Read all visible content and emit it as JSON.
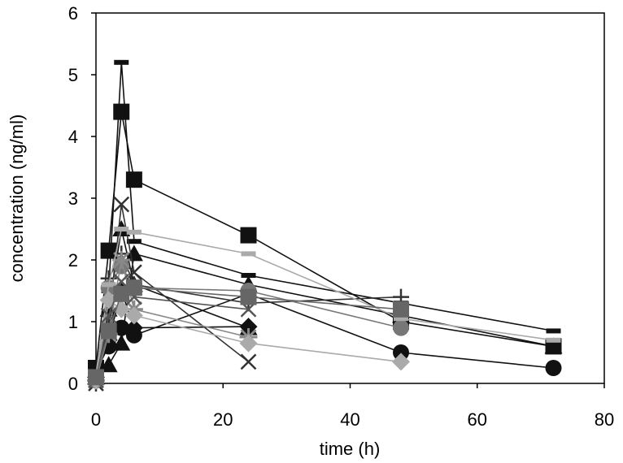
{
  "chart_data": {
    "type": "line",
    "title": "",
    "xlabel": "time (h)",
    "ylabel": "concentration (ng/ml)",
    "xlim": [
      0,
      80
    ],
    "ylim": [
      0,
      6
    ],
    "xticks": [
      0,
      20,
      40,
      60,
      80
    ],
    "yticks": [
      0,
      1,
      2,
      3,
      4,
      5,
      6
    ],
    "grid": false,
    "legend": "none",
    "series": [
      {
        "marker": "square",
        "color": "#111111",
        "x": [
          0,
          2,
          4,
          6,
          24,
          48,
          72
        ],
        "y": [
          0.25,
          2.15,
          4.4,
          3.3,
          2.4,
          1.0,
          0.6
        ]
      },
      {
        "marker": "dash",
        "color": "#111111",
        "x": [
          0,
          2,
          4,
          6,
          24,
          48,
          72
        ],
        "y": [
          0.2,
          1.5,
          5.2,
          2.3,
          1.75,
          1.3,
          0.85
        ]
      },
      {
        "marker": "triangle",
        "color": "#111111",
        "x": [
          0,
          2,
          4,
          6,
          24,
          48,
          72
        ],
        "y": [
          0.15,
          0.3,
          0.65,
          2.1,
          1.6,
          1.1,
          0.6
        ]
      },
      {
        "marker": "triangle",
        "color": "#111111",
        "x": [
          0,
          2,
          4,
          6,
          24
        ],
        "y": [
          0.1,
          1.2,
          2.5,
          1.6,
          0.9
        ]
      },
      {
        "marker": "circle",
        "color": "#111111",
        "x": [
          0,
          2,
          4,
          6,
          24,
          48,
          72
        ],
        "y": [
          0.2,
          0.6,
          0.9,
          0.78,
          1.45,
          0.5,
          0.25
        ]
      },
      {
        "marker": "diamond",
        "color": "#111111",
        "x": [
          0,
          2,
          4,
          6,
          24
        ],
        "y": [
          0.1,
          0.7,
          1.5,
          0.9,
          0.92
        ]
      },
      {
        "marker": "x",
        "color": "#333333",
        "x": [
          0,
          2,
          4,
          6,
          24
        ],
        "y": [
          0.0,
          1.0,
          2.9,
          1.8,
          0.35
        ]
      },
      {
        "marker": "plus",
        "color": "#333333",
        "x": [
          0,
          2,
          4,
          6,
          24,
          48
        ],
        "y": [
          0.0,
          1.7,
          2.1,
          1.6,
          1.3,
          1.4
        ]
      },
      {
        "marker": "circle",
        "color": "#777777",
        "x": [
          0,
          2,
          4,
          6,
          24,
          48
        ],
        "y": [
          0.05,
          1.55,
          1.9,
          1.55,
          1.5,
          0.9
        ]
      },
      {
        "marker": "star",
        "color": "#888888",
        "x": [
          0,
          2,
          4,
          6,
          24
        ],
        "y": [
          0.05,
          0.8,
          2.0,
          1.2,
          0.75
        ]
      },
      {
        "marker": "dash",
        "color": "#aaaaaa",
        "x": [
          0,
          2,
          4,
          6,
          24,
          48,
          72
        ],
        "y": [
          0.15,
          1.6,
          2.5,
          2.45,
          2.1,
          1.05,
          0.7
        ]
      },
      {
        "marker": "diamond",
        "color": "#aaaaaa",
        "x": [
          0,
          2,
          4,
          6,
          24,
          48
        ],
        "y": [
          0.05,
          1.35,
          1.2,
          1.1,
          0.65,
          0.35
        ]
      },
      {
        "marker": "x",
        "color": "#555555",
        "x": [
          0,
          2,
          4,
          6,
          24
        ],
        "y": [
          0.05,
          1.1,
          1.65,
          1.4,
          1.2
        ]
      },
      {
        "marker": "square",
        "color": "#666666",
        "x": [
          0,
          2,
          4,
          6,
          24,
          48
        ],
        "y": [
          0.1,
          0.85,
          1.45,
          1.55,
          1.4,
          1.2
        ]
      }
    ]
  }
}
